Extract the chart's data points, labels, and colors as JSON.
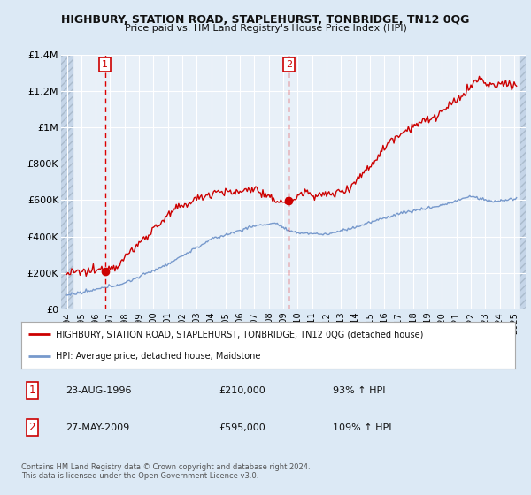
{
  "title": "HIGHBURY, STATION ROAD, STAPLEHURST, TONBRIDGE, TN12 0QG",
  "subtitle": "Price paid vs. HM Land Registry's House Price Index (HPI)",
  "legend_line1": "HIGHBURY, STATION ROAD, STAPLEHURST, TONBRIDGE, TN12 0QG (detached house)",
  "legend_line2": "HPI: Average price, detached house, Maidstone",
  "footnote": "Contains HM Land Registry data © Crown copyright and database right 2024.\nThis data is licensed under the Open Government Licence v3.0.",
  "sale1_date": "23-AUG-1996",
  "sale1_price": 210000,
  "sale1_pct": "93% ↑ HPI",
  "sale2_date": "27-MAY-2009",
  "sale2_price": 595000,
  "sale2_pct": "109% ↑ HPI",
  "sale1_year": 1996.64,
  "sale2_year": 2009.39,
  "xmin": 1993.6,
  "xmax": 2025.8,
  "ymin": 0,
  "ymax": 1400000,
  "yticks": [
    0,
    200000,
    400000,
    600000,
    800000,
    1000000,
    1200000,
    1400000
  ],
  "ytick_labels": [
    "£0",
    "£200K",
    "£400K",
    "£600K",
    "£800K",
    "£1M",
    "£1.2M",
    "£1.4M"
  ],
  "bg_color": "#dce9f5",
  "plot_bg": "#e8f0f8",
  "hatch_color": "#c5d5e8",
  "grid_color": "#ffffff",
  "red_line_color": "#cc0000",
  "blue_line_color": "#7799cc",
  "marker_color": "#cc0000",
  "vline_color": "#dd0000"
}
